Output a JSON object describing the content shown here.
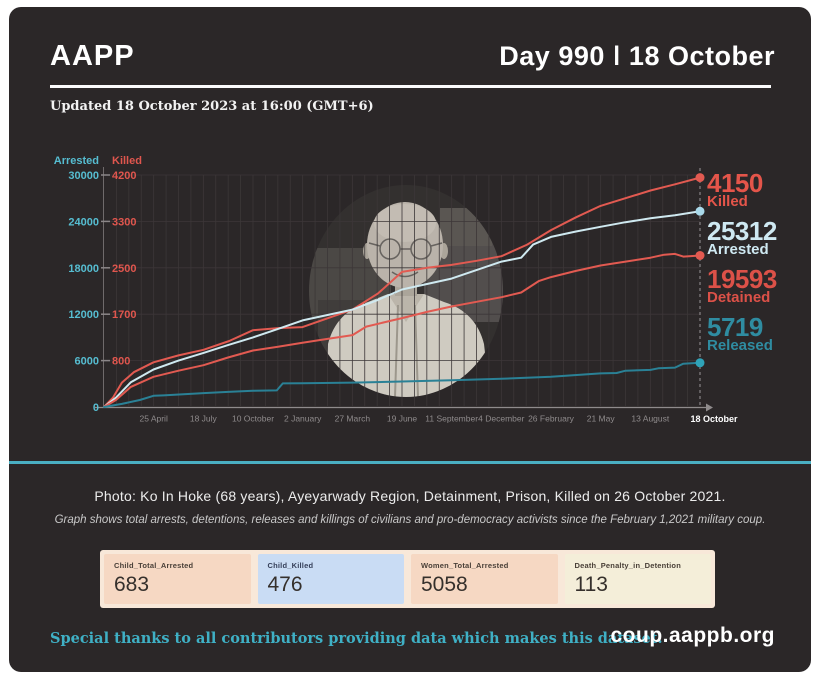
{
  "page_bg": "#ffffff",
  "card_bg": "#2b2728",
  "header": {
    "brand": "AAPP",
    "day_title": "Day 990 ǀ 18 October"
  },
  "updated_line": "Updated 18 October 2023 at 16:00 (GMT+6)",
  "divider_color": "#4aafc3",
  "chart_data": {
    "type": "line",
    "title": "",
    "grid": true,
    "left_axis": {
      "label": "Arrested",
      "color": "#56bdd1",
      "ticks": [
        30000,
        24000,
        18000,
        12000,
        6000
      ],
      "zero_label": "0",
      "max": 30000
    },
    "right_axis": {
      "label": "Killed",
      "color": "#e0564e",
      "ticks": [
        4200,
        3300,
        2500,
        1700,
        800
      ],
      "max": 4200
    },
    "x_tick_labels": [
      "25 April",
      "18 July",
      "10 October",
      "2 January",
      "27 March",
      "19 June",
      "11 September",
      "4 December",
      "26 February",
      "21 May",
      "13 August"
    ],
    "x_end_label": "18 October",
    "x_label_color": "#8f8b8c",
    "grid_color": "#3c3738",
    "series": [
      {
        "name": "Killed",
        "axis": "right",
        "color": "#e25a51",
        "dot_color": "#e25a51",
        "end_value": 4150,
        "points": [
          [
            0,
            0
          ],
          [
            0.015,
            160
          ],
          [
            0.03,
            420
          ],
          [
            0.05,
            600
          ],
          [
            0.083,
            770
          ],
          [
            0.125,
            900
          ],
          [
            0.167,
            1010
          ],
          [
            0.21,
            1180
          ],
          [
            0.25,
            1390
          ],
          [
            0.292,
            1430
          ],
          [
            0.333,
            1450
          ],
          [
            0.375,
            1620
          ],
          [
            0.417,
            1780
          ],
          [
            0.46,
            2060
          ],
          [
            0.5,
            2430
          ],
          [
            0.542,
            2500
          ],
          [
            0.583,
            2550
          ],
          [
            0.625,
            2620
          ],
          [
            0.667,
            2700
          ],
          [
            0.71,
            2900
          ],
          [
            0.75,
            3150
          ],
          [
            0.792,
            3380
          ],
          [
            0.833,
            3600
          ],
          [
            0.875,
            3750
          ],
          [
            0.917,
            3900
          ],
          [
            0.958,
            4020
          ],
          [
            1,
            4150
          ]
        ]
      },
      {
        "name": "Arrested",
        "axis": "left",
        "color": "#cfe9f0",
        "dot_color": "#a9d9ea",
        "end_value": 25312,
        "points": [
          [
            0,
            0
          ],
          [
            0.02,
            1200
          ],
          [
            0.045,
            3200
          ],
          [
            0.083,
            4850
          ],
          [
            0.125,
            6000
          ],
          [
            0.167,
            7000
          ],
          [
            0.208,
            8000
          ],
          [
            0.25,
            9000
          ],
          [
            0.292,
            10100
          ],
          [
            0.333,
            11200
          ],
          [
            0.375,
            11900
          ],
          [
            0.417,
            12600
          ],
          [
            0.458,
            13800
          ],
          [
            0.5,
            15200
          ],
          [
            0.542,
            15900
          ],
          [
            0.583,
            16600
          ],
          [
            0.625,
            17700
          ],
          [
            0.667,
            18800
          ],
          [
            0.7,
            19300
          ],
          [
            0.72,
            21000
          ],
          [
            0.75,
            22000
          ],
          [
            0.792,
            22700
          ],
          [
            0.833,
            23300
          ],
          [
            0.875,
            23900
          ],
          [
            0.917,
            24400
          ],
          [
            0.958,
            24800
          ],
          [
            1,
            25312
          ]
        ]
      },
      {
        "name": "Detained",
        "axis": "left",
        "color": "#e25a51",
        "dot_color": "#e25a51",
        "end_value": 19593,
        "points": [
          [
            0,
            0
          ],
          [
            0.02,
            900
          ],
          [
            0.045,
            2600
          ],
          [
            0.083,
            3900
          ],
          [
            0.125,
            4700
          ],
          [
            0.167,
            5400
          ],
          [
            0.208,
            6400
          ],
          [
            0.25,
            7300
          ],
          [
            0.292,
            7800
          ],
          [
            0.333,
            8300
          ],
          [
            0.375,
            8800
          ],
          [
            0.417,
            9300
          ],
          [
            0.44,
            10400
          ],
          [
            0.5,
            11500
          ],
          [
            0.542,
            12300
          ],
          [
            0.583,
            13000
          ],
          [
            0.625,
            13600
          ],
          [
            0.667,
            14200
          ],
          [
            0.7,
            14800
          ],
          [
            0.73,
            16300
          ],
          [
            0.75,
            16800
          ],
          [
            0.792,
            17600
          ],
          [
            0.833,
            18300
          ],
          [
            0.875,
            18800
          ],
          [
            0.917,
            19300
          ],
          [
            0.94,
            19700
          ],
          [
            0.958,
            19800
          ],
          [
            0.972,
            19450
          ],
          [
            0.988,
            19520
          ],
          [
            1,
            19593
          ]
        ]
      },
      {
        "name": "Released",
        "axis": "left",
        "color": "#2a8196",
        "dot_color": "#2fa3b8",
        "end_value": 5719,
        "points": [
          [
            0,
            0
          ],
          [
            0.03,
            400
          ],
          [
            0.06,
            900
          ],
          [
            0.083,
            1450
          ],
          [
            0.1,
            1500
          ],
          [
            0.167,
            1800
          ],
          [
            0.208,
            1950
          ],
          [
            0.25,
            2100
          ],
          [
            0.29,
            2150
          ],
          [
            0.3,
            3050
          ],
          [
            0.333,
            3060
          ],
          [
            0.417,
            3150
          ],
          [
            0.5,
            3300
          ],
          [
            0.583,
            3450
          ],
          [
            0.667,
            3650
          ],
          [
            0.75,
            3900
          ],
          [
            0.833,
            4350
          ],
          [
            0.86,
            4400
          ],
          [
            0.875,
            4700
          ],
          [
            0.917,
            4800
          ],
          [
            0.93,
            5000
          ],
          [
            0.958,
            5100
          ],
          [
            0.972,
            5600
          ],
          [
            1,
            5719
          ]
        ]
      }
    ],
    "end_labels": [
      {
        "value": "4150",
        "label": "Killed",
        "color": "#e4554a"
      },
      {
        "value": "25312",
        "label": "Arrested",
        "color": "#cfe9f2"
      },
      {
        "value": "19593",
        "label": "Detained",
        "color": "#dc5148"
      },
      {
        "value": "5719",
        "label": "Released",
        "color": "#2f8ca1"
      }
    ],
    "legend_position": "right-end-labels"
  },
  "captions": {
    "photo": "Photo: Ko In Hoke (68 years), Ayeyarwady Region, Detainment, Prison, Killed on 26 October 2021.",
    "graph_note": "Graph shows total arrests, detentions, releases and killings of civilians and pro-democracy activists since the February 1,2021 military coup."
  },
  "stats": {
    "strip_bg": "#f8e8d9",
    "items": [
      {
        "label": "Child_Total_Arrested",
        "value": "683",
        "bg": "#f6d8c3"
      },
      {
        "label": "Child_Killed",
        "value": "476",
        "bg": "#c9dcf4"
      },
      {
        "label": "Women_Total_Arrested",
        "value": "5058",
        "bg": "#f6d8c3"
      },
      {
        "label": "Death_Penalty_in_Detention",
        "value": "113",
        "bg": "#f4eed9"
      }
    ]
  },
  "footer": {
    "thanks": "Special thanks to all contributors providing data which makes this dataset.",
    "thanks_color": "#3fb0c5",
    "site": "coup.aappb.org"
  }
}
